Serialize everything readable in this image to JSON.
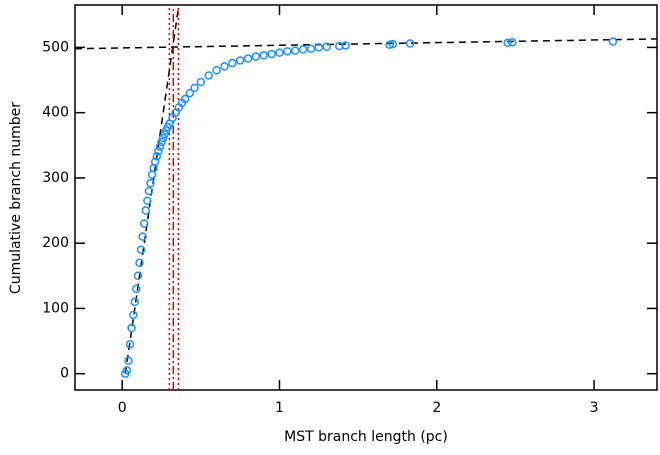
{
  "chart_data": {
    "type": "scatter",
    "x_label": "MST branch length (pc)",
    "y_label": "Cumulative branch number",
    "xlim": [
      -0.3,
      3.4
    ],
    "ylim": [
      -25,
      565
    ],
    "xticks": [
      0,
      1,
      2,
      3
    ],
    "yticks": [
      0,
      100,
      200,
      300,
      400,
      500
    ],
    "series": [
      {
        "color": "#1e90ff",
        "x": [
          0.02,
          0.03,
          0.04,
          0.05,
          0.06,
          0.07,
          0.08,
          0.09,
          0.1,
          0.11,
          0.12,
          0.13,
          0.14,
          0.15,
          0.16,
          0.17,
          0.18,
          0.19,
          0.2,
          0.21,
          0.22,
          0.23,
          0.24,
          0.25,
          0.26,
          0.27,
          0.28,
          0.29,
          0.3,
          0.32,
          0.34,
          0.36,
          0.38,
          0.4,
          0.43,
          0.46,
          0.5,
          0.55,
          0.6,
          0.65,
          0.7,
          0.75,
          0.8,
          0.85,
          0.9,
          0.95,
          1.0,
          1.05,
          1.1,
          1.15,
          1.2,
          1.25,
          1.3,
          1.38,
          1.42,
          1.7,
          1.72,
          1.83,
          2.45,
          2.48,
          3.12
        ],
        "values": [
          0,
          5,
          20,
          45,
          70,
          90,
          110,
          130,
          150,
          170,
          190,
          210,
          230,
          250,
          265,
          280,
          292,
          305,
          315,
          325,
          333,
          341,
          348,
          355,
          361,
          367,
          373,
          378,
          383,
          392,
          400,
          408,
          415,
          421,
          430,
          438,
          447,
          457,
          465,
          471,
          476,
          480,
          483,
          486,
          488,
          490,
          492,
          494,
          495,
          497,
          498,
          500,
          501,
          502,
          503,
          504,
          505,
          506,
          507,
          508,
          509
        ]
      }
    ],
    "reference_lines": [
      {
        "x": [
          0.02,
          0.36
        ],
        "y": [
          0,
          565
        ],
        "color": "#000000",
        "style": "dashed"
      },
      {
        "x": [
          -0.3,
          3.4
        ],
        "y": [
          498,
          513
        ],
        "color": "#000000",
        "style": "dashed"
      },
      {
        "x": [
          0.3,
          0.3
        ],
        "y": [
          -25,
          565
        ],
        "color": "#dd0000",
        "style": "dotted"
      },
      {
        "x": [
          0.357,
          0.357
        ],
        "y": [
          -25,
          565
        ],
        "color": "#dd0000",
        "style": "dotted"
      },
      {
        "x": [
          0.325,
          0.325
        ],
        "y": [
          -25,
          565
        ],
        "color": "#dd0000",
        "style": "dashdot"
      }
    ]
  }
}
